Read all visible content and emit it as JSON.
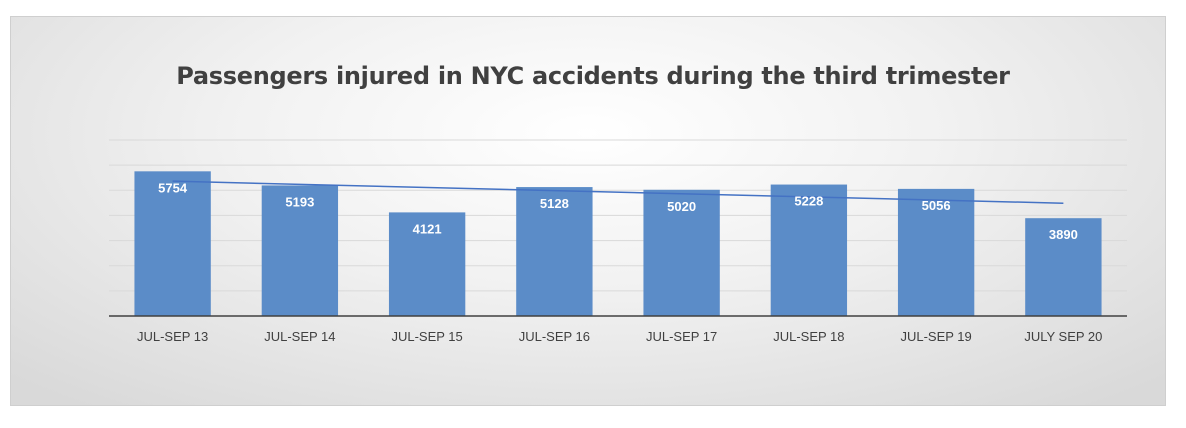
{
  "chart_data": {
    "type": "bar",
    "title": "Passengers injured in NYC accidents during the third trimester",
    "categories": [
      "JUL-SEP 13",
      "JUL-SEP 14",
      "JUL-SEP 15",
      "JUL-SEP 16",
      "JUL-SEP 17",
      "JUL-SEP 18",
      "JUL-SEP 19",
      "JULY SEP 20"
    ],
    "values": [
      5754,
      5193,
      4121,
      5128,
      5020,
      5228,
      5056,
      3890
    ],
    "data_labels": [
      "5754",
      "5193",
      "4121",
      "5128",
      "5020",
      "5228",
      "5056",
      "3890"
    ],
    "ylim": [
      0,
      7000
    ],
    "grid": true,
    "y_tick_labels_shown": false,
    "trendline": {
      "type": "linear",
      "color": "#4472c4"
    },
    "colors": {
      "bar": "#5b8cc8",
      "trendline": "#4472c4",
      "axis": "#404040",
      "gridline": "#d9d9d9"
    }
  }
}
